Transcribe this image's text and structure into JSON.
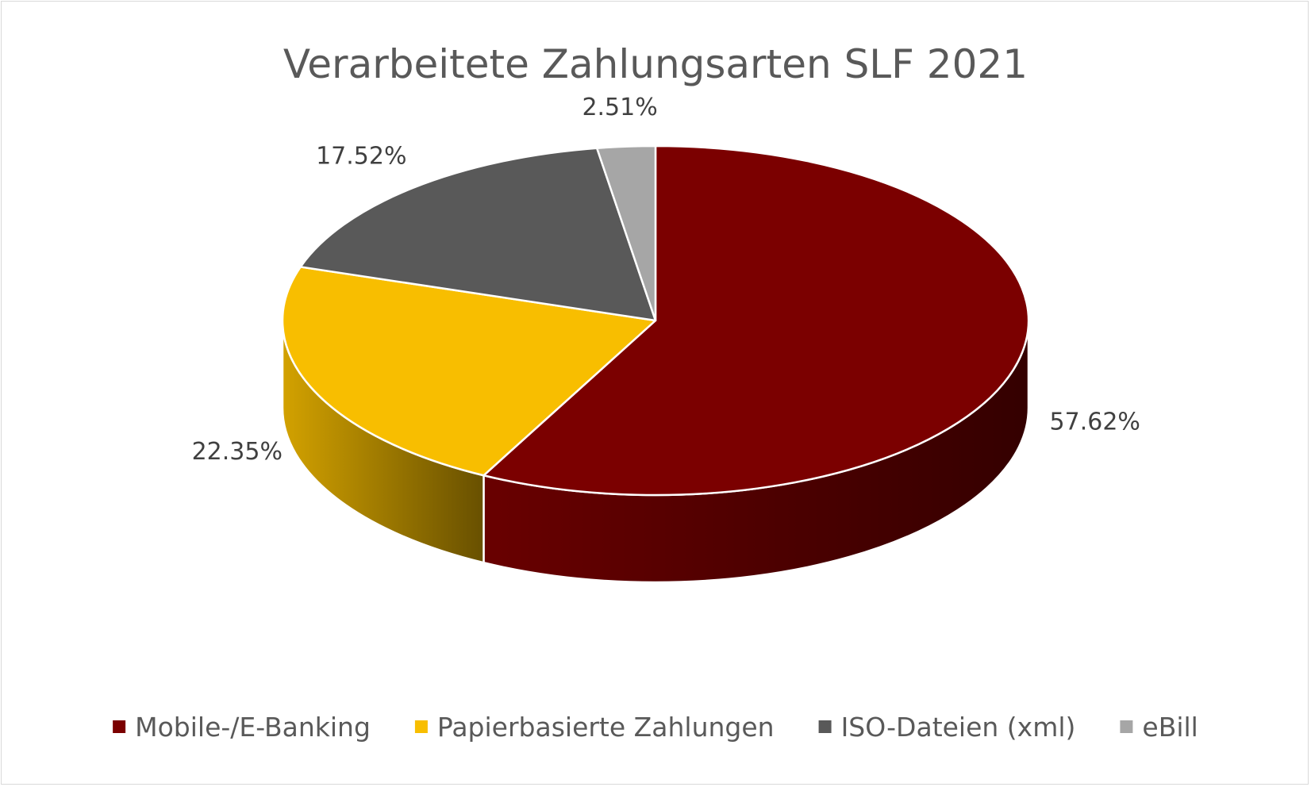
{
  "chart_data": {
    "type": "pie",
    "title": "Verarbeitete Zahlungsarten SLF 2021",
    "categories": [
      "Mobile-/E-Banking",
      "Papierbasierte Zahlungen",
      "ISO-Dateien (xml)",
      "eBill"
    ],
    "values": [
      57.62,
      22.35,
      17.52,
      2.51
    ],
    "data_labels": [
      "57.62%",
      "22.35%",
      "17.52%",
      "2.51%"
    ],
    "colors": [
      "#7B0000",
      "#F8BE00",
      "#595959",
      "#A6A6A6"
    ],
    "style": "3d",
    "legend_position": "bottom"
  }
}
